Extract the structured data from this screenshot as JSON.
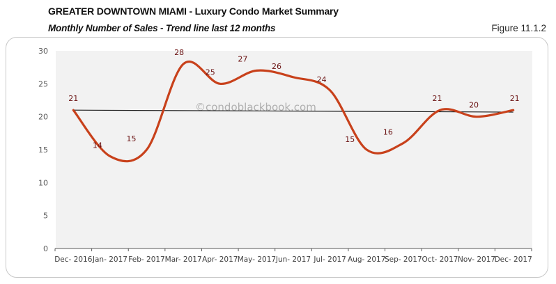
{
  "header": {
    "title": "GREATER DOWNTOWN MIAMI - Luxury Condo Market Summary",
    "subtitle": "Monthly Number of Sales - Trend line last 12 months",
    "figure": "Figure 11.1.2"
  },
  "watermark": "©condoblackbook.com",
  "colors": {
    "line": "#c8411b",
    "trendline": "#1a1a1a",
    "labels": "#6b1313",
    "plot_bg": "#f2f2f2"
  },
  "chart_data": {
    "type": "line",
    "title": "Monthly Number of Sales - Trend line last 12 months",
    "xlabel": "",
    "ylabel": "",
    "ylim": [
      0,
      30
    ],
    "yticks": [
      0,
      5,
      10,
      15,
      20,
      25,
      30
    ],
    "grid": false,
    "legend": null,
    "smoothed": true,
    "categories": [
      "Dec- 2016",
      "Jan- 2017",
      "Feb- 2017",
      "Mar- 2017",
      "Apr- 2017",
      "May- 2017",
      "Jun- 2017",
      "Jul- 2017",
      "Aug- 2017",
      "Sep- 2017",
      "Oct- 2017",
      "Nov- 2017",
      "Dec- 2017"
    ],
    "series": [
      {
        "name": "Monthly Number of Sales",
        "values": [
          21,
          14,
          15,
          28,
          25,
          27,
          26,
          24,
          15,
          16,
          21,
          20,
          21
        ],
        "data_labels": true
      }
    ],
    "trendline": {
      "type": "linear",
      "start": 21.0,
      "end": 20.7
    }
  }
}
